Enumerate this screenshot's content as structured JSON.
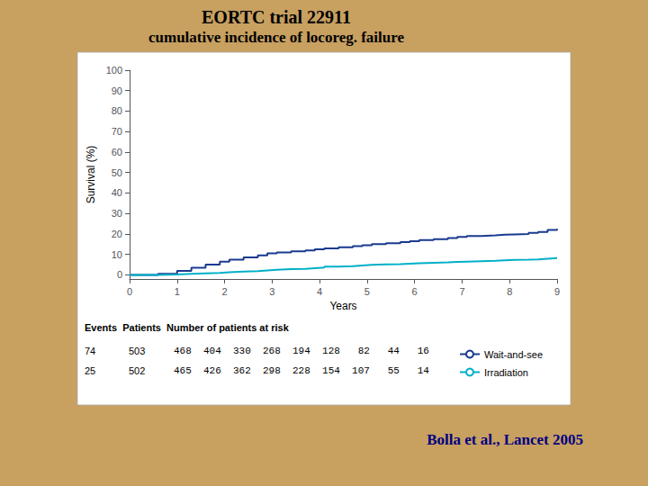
{
  "chart_data": {
    "type": "step",
    "title": "EORTC trial 22911",
    "subtitle": "cumulative incidence of locoreg. failure",
    "xlabel": "Years",
    "ylabel": "Survival (%)",
    "x": [
      0,
      0.1,
      0.6,
      1.0,
      1.3,
      1.6,
      1.9,
      2.1,
      2.4,
      2.7,
      2.9,
      3.1,
      3.4,
      3.7,
      3.9,
      4.1,
      4.4,
      4.7,
      4.9,
      5.1,
      5.4,
      5.7,
      5.9,
      6.1,
      6.4,
      6.7,
      6.9,
      7.1,
      7.4,
      7.7,
      7.9,
      8.1,
      8.4,
      8.6,
      8.8,
      9.0
    ],
    "series": [
      {
        "name": "Wait-and-see",
        "color": "#1a3a8f",
        "values": [
          0,
          0,
          0.5,
          2.0,
          3.5,
          5.0,
          6.5,
          7.5,
          8.5,
          9.5,
          10.5,
          11.0,
          11.5,
          12.0,
          12.5,
          13.0,
          13.5,
          14.0,
          14.5,
          15.0,
          15.5,
          16.0,
          16.5,
          17.0,
          17.5,
          18.0,
          18.5,
          19.0,
          19.3,
          19.6,
          19.8,
          20.0,
          20.5,
          21.0,
          22.0,
          22.5
        ]
      },
      {
        "name": "Irradiation",
        "color": "#00b0c8",
        "values": [
          0,
          0,
          0.2,
          0.5,
          0.8,
          1.0,
          1.3,
          1.6,
          1.9,
          2.2,
          2.5,
          2.8,
          3.0,
          3.3,
          3.6,
          4.0,
          4.3,
          4.6,
          4.9,
          5.1,
          5.3,
          5.5,
          5.7,
          5.9,
          6.1,
          6.3,
          6.5,
          6.7,
          6.9,
          7.1,
          7.3,
          7.4,
          7.6,
          7.9,
          8.2,
          8.5
        ]
      }
    ],
    "xlim": [
      0,
      9
    ],
    "xticks": [
      0,
      1,
      2,
      3,
      4,
      5,
      6,
      7,
      8,
      9
    ],
    "ylim": [
      -2,
      100
    ],
    "yticks": [
      0,
      10,
      20,
      30,
      40,
      50,
      60,
      70,
      80,
      90,
      100
    ],
    "grid": false,
    "legend": "lower right",
    "table": {
      "header": "Events  Patients  Number of patients at risk",
      "rows": [
        [
          "74",
          "503",
          "468  404  330  268  194  128   82   44   16"
        ],
        [
          "25",
          "502",
          "465  426  362  298  228  154  107   55   14"
        ]
      ]
    },
    "footnote": "Bolla et al., Lancet 2005"
  }
}
